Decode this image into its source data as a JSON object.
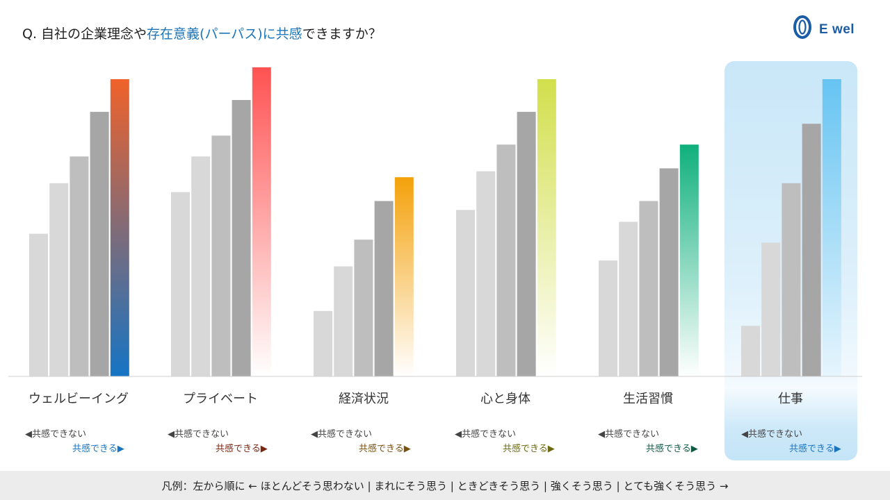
{
  "title": {
    "prefix": "Q. 自社の企業理念や",
    "highlight": "存在意義(パーパス)に共感",
    "suffix": "できますか？"
  },
  "logo": {
    "text": "E wel",
    "icon": "ewel-logo-icon"
  },
  "legend_neg": "◀共感できない",
  "legend_pos": "共感できる▶",
  "footer": "凡例：左から順に ← ほとんどそう思わない | まれにそう思う | ときどきそう思う | 強くそう思う | とても強くそう思う →",
  "colors": {
    "gray_levels": [
      "#d8d8d8",
      "#d8d8d8",
      "#bebebe",
      "#a6a6a6"
    ],
    "highlight_bg": "#cbe8f8",
    "title_accent": "#1b75bb",
    "footer_bg": "#ececec"
  },
  "chart_data": {
    "type": "bar",
    "title": "",
    "xlabel": "",
    "ylabel": "",
    "ylim": [
      0,
      100
    ],
    "grid": false,
    "legend": "bottom",
    "response_scale": [
      "ほとんどそう思わない",
      "まれにそう思う",
      "ときどきそう思う",
      "強くそう思う",
      "とても強くそう思う"
    ],
    "groups": [
      {
        "category": "ウェルビーイング",
        "values": [
          48,
          65,
          74,
          89,
          100
        ],
        "top_color": "#f0622a",
        "bottom_color": "#1574c4",
        "pos_color": "#1a74c0"
      },
      {
        "category": "プライベート",
        "values": [
          62,
          74,
          81,
          93,
          104
        ],
        "top_color": "#ff5252",
        "bottom_color": "#ffffff",
        "pos_color": "#7a2510"
      },
      {
        "category": "経済状況",
        "values": [
          22,
          37,
          46,
          59,
          67
        ],
        "top_color": "#f4a10a",
        "bottom_color": "#ffffff",
        "pos_color": "#7a5010"
      },
      {
        "category": "心と身体",
        "values": [
          56,
          69,
          78,
          89,
          100
        ],
        "top_color": "#d2df4c",
        "bottom_color": "#ffffff",
        "pos_color": "#6b6a12"
      },
      {
        "category": "生活習慣",
        "values": [
          39,
          52,
          59,
          70,
          78
        ],
        "top_color": "#0fb07c",
        "bottom_color": "#ffffff",
        "pos_color": "#0f5a45"
      },
      {
        "category": "仕事",
        "values": [
          17,
          45,
          65,
          85,
          100
        ],
        "top_color": "#66c4f2",
        "bottom_color": "#e6f5fd",
        "pos_color": "#1a74c0",
        "highlighted": true
      }
    ]
  }
}
